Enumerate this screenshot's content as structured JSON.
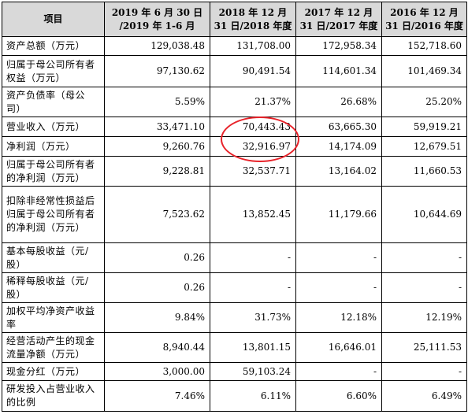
{
  "table": {
    "headers": [
      "项目",
      "2019 年 6 月 30 日 /2019 年 1-6 月",
      "2018 年 12 月 31 日/2018 年度",
      "2017 年 12 月 31 日/2017 年度",
      "2016 年 12 月 31 日/2016 年度"
    ],
    "rows": [
      {
        "label": "资产总额（万元）",
        "values": [
          "129,038.48",
          "131,708.00",
          "172,958.34",
          "152,718.60"
        ]
      },
      {
        "label": "归属于母公司所有者权益（万元）",
        "values": [
          "97,130.62",
          "90,491.54",
          "114,601.34",
          "101,469.34"
        ]
      },
      {
        "label": "资产负债率（母公司）",
        "values": [
          "5.59%",
          "21.37%",
          "26.68%",
          "25.20%"
        ]
      },
      {
        "label": "营业收入（万元）",
        "values": [
          "33,471.10",
          "70,443.43",
          "63,665.30",
          "59,919.21"
        ]
      },
      {
        "label": "净利润（万元）",
        "values": [
          "9,260.76",
          "32,916.97",
          "14,174.09",
          "12,679.51"
        ]
      },
      {
        "label": "归属于母公司所有者的净利润（万元）",
        "values": [
          "9,228.81",
          "32,537.71",
          "13,164.02",
          "11,660.53"
        ]
      },
      {
        "label": "扣除非经常性损益后归属于母公司所有者的净利润（万元）",
        "values": [
          "7,523.62",
          "13,852.45",
          "11,179.66",
          "10,644.69"
        ]
      },
      {
        "label": "基本每股收益（元/股）",
        "values": [
          "0.26",
          "-",
          "-",
          "-"
        ]
      },
      {
        "label": "稀释每股收益（元/股）",
        "values": [
          "0.26",
          "-",
          "-",
          "-"
        ]
      },
      {
        "label": "加权平均净资产收益率",
        "values": [
          "9.84%",
          "31.73%",
          "12.18%",
          "12.19%"
        ]
      },
      {
        "label": "经营活动产生的现金流量净额（万元）",
        "values": [
          "8,940.44",
          "13,801.15",
          "16,646.01",
          "25,111.53"
        ]
      },
      {
        "label": "现金分红（万元）",
        "values": [
          "3,000.00",
          "59,103.24",
          "-",
          "-"
        ]
      },
      {
        "label": "研发投入占营业收入的比例",
        "values": [
          "7.46%",
          "6.11%",
          "6.60%",
          "6.49%"
        ]
      }
    ]
  },
  "colors": {
    "header_bg": "#d9d9d9",
    "highlight_circle": "#e8232a"
  }
}
